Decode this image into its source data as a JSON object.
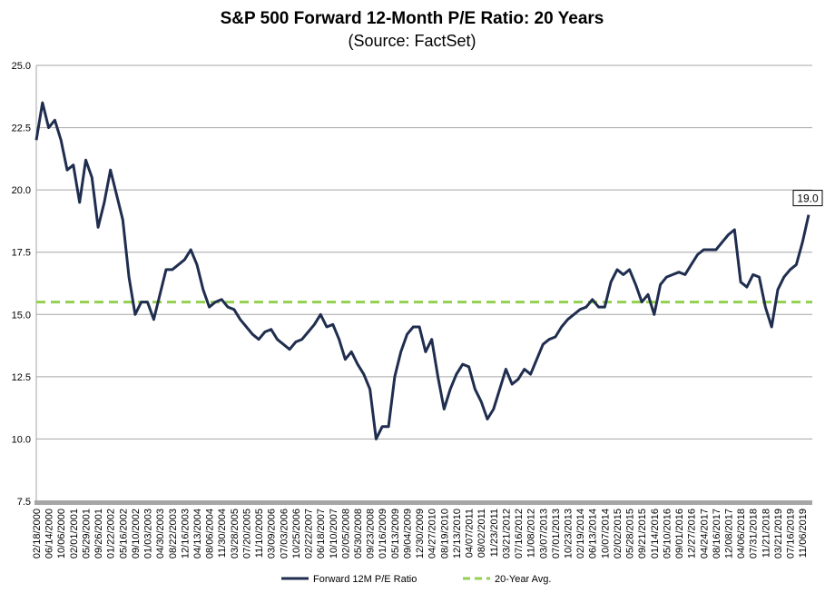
{
  "chart_data": {
    "type": "line",
    "title": "S&P 500 Forward 12-Month P/E Ratio: 20 Years",
    "subtitle": "(Source: FactSet)",
    "categories": [
      "02/18/2000",
      null,
      "06/14/2000",
      null,
      "10/06/2000",
      null,
      "02/01/2001",
      null,
      "05/29/2001",
      null,
      "09/26/2001",
      null,
      "01/22/2002",
      null,
      "05/16/2002",
      null,
      "09/10/2002",
      null,
      "01/03/2003",
      null,
      "04/30/2003",
      null,
      "08/22/2003",
      null,
      "12/16/2003",
      null,
      "04/13/2004",
      null,
      "08/06/2004",
      null,
      "11/30/2004",
      null,
      "03/28/2005",
      null,
      "07/20/2005",
      null,
      "11/10/2005",
      null,
      "03/09/2006",
      null,
      "07/03/2006",
      null,
      "10/25/2006",
      null,
      "02/22/2007",
      null,
      "06/18/2007",
      null,
      "10/10/2007",
      null,
      "02/05/2008",
      null,
      "05/30/2008",
      null,
      "09/23/2008",
      null,
      "01/16/2009",
      null,
      "05/13/2009",
      null,
      "09/04/2009",
      null,
      "12/30/2009",
      null,
      "04/27/2010",
      null,
      "08/19/2010",
      null,
      "12/13/2010",
      null,
      "04/07/2011",
      null,
      "08/02/2011",
      null,
      "11/23/2011",
      null,
      "03/21/2012",
      null,
      "07/16/2012",
      null,
      "11/08/2012",
      null,
      "03/07/2013",
      null,
      "07/01/2013",
      null,
      "10/23/2013",
      null,
      "02/19/2014",
      null,
      "06/13/2014",
      null,
      "10/07/2014",
      null,
      "02/02/2015",
      null,
      "05/28/2015",
      null,
      "09/21/2015",
      null,
      "01/14/2016",
      null,
      "05/10/2016",
      null,
      "09/01/2016",
      null,
      "12/27/2016",
      null,
      "04/24/2017",
      null,
      "08/16/2017",
      null,
      "12/08/2017",
      null,
      "04/06/2018",
      null,
      "07/31/2018",
      null,
      "11/21/2018",
      null,
      "03/21/2019",
      null,
      "07/16/2019",
      null,
      "11/06/2019",
      null
    ],
    "series": [
      {
        "name": "Forward 12M P/E Ratio",
        "color": "#1f2d4f",
        "values": [
          22,
          23.5,
          22.5,
          22.8,
          22,
          20.8,
          21,
          19.5,
          21.2,
          20.5,
          18.5,
          19.5,
          20.8,
          19.8,
          18.8,
          16.5,
          15,
          15.5,
          15.5,
          14.8,
          15.8,
          16.8,
          16.8,
          17,
          17.2,
          17.6,
          17,
          16,
          15.3,
          15.5,
          15.6,
          15.3,
          15.2,
          14.8,
          14.5,
          14.2,
          14,
          14.3,
          14.4,
          14,
          13.8,
          13.6,
          13.9,
          14,
          14.3,
          14.6,
          15,
          14.5,
          14.6,
          14,
          13.2,
          13.5,
          13,
          12.6,
          12,
          10,
          10.5,
          10.5,
          12.5,
          13.5,
          14.2,
          14.5,
          14.5,
          13.5,
          14,
          12.5,
          11.2,
          12,
          12.6,
          13,
          12.9,
          12,
          11.5,
          10.8,
          11.2,
          12,
          12.8,
          12.2,
          12.4,
          12.8,
          12.6,
          13.2,
          13.8,
          14,
          14.1,
          14.5,
          14.8,
          15,
          15.2,
          15.3,
          15.6,
          15.3,
          15.3,
          16.3,
          16.8,
          16.6,
          16.8,
          16.2,
          15.5,
          15.8,
          15,
          16.2,
          16.5,
          16.6,
          16.7,
          16.6,
          17,
          17.4,
          17.6,
          17.6,
          17.6,
          17.9,
          18.2,
          18.4,
          16.3,
          16.1,
          16.6,
          16.5,
          15.3,
          14.5,
          16,
          16.5,
          16.8,
          17,
          17.9,
          19
        ],
        "value_labels": [
          null,
          null,
          null,
          null,
          null,
          null,
          null,
          null,
          null,
          null,
          null,
          null,
          null,
          null,
          null,
          null,
          null,
          null,
          null,
          null,
          null,
          null,
          null,
          null,
          null,
          null,
          null,
          null,
          null,
          null,
          null,
          null,
          null,
          null,
          null,
          null,
          null,
          null,
          null,
          null,
          null,
          null,
          null,
          null,
          null,
          null,
          null,
          null,
          null,
          null,
          null,
          null,
          null,
          null,
          null,
          null,
          null,
          null,
          null,
          null,
          null,
          null,
          null,
          null,
          null,
          null,
          null,
          null,
          null,
          null,
          null,
          null,
          null,
          null,
          null,
          null,
          null,
          null,
          null,
          null,
          null,
          null,
          null,
          null,
          null,
          null,
          null,
          null,
          null,
          null,
          null,
          null,
          null,
          null,
          null,
          null,
          null,
          null,
          null,
          null,
          null,
          null,
          null,
          null,
          null,
          null,
          null,
          null,
          null,
          null,
          null,
          null,
          null,
          null,
          null,
          null,
          null,
          null,
          null,
          null,
          null,
          null,
          null,
          null,
          null,
          "19.0"
        ]
      }
    ],
    "reference_line": {
      "name": "20-Year Avg.",
      "value": 15.5,
      "color": "#92d050"
    },
    "ylim": [
      7.5,
      25
    ],
    "yticks": [
      7.5,
      {
        "value": 10,
        "label": "10.0"
      },
      12.5,
      {
        "value": 15,
        "label": "15.0"
      },
      17.5,
      {
        "value": 20,
        "label": "20.0"
      },
      22.5,
      {
        "value": 25,
        "label": "25.0"
      }
    ],
    "grid": true,
    "legend": "bottom"
  }
}
